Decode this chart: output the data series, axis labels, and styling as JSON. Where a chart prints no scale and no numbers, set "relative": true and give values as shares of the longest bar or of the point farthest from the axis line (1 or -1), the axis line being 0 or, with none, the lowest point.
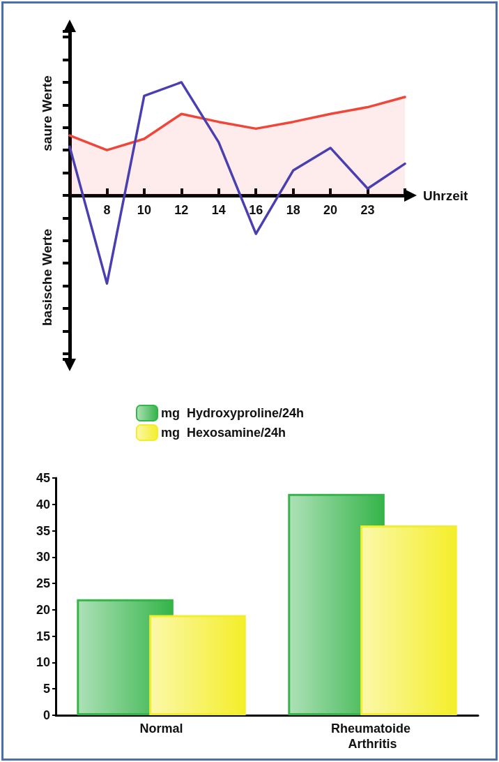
{
  "chart_data": [
    {
      "type": "line",
      "relative": true,
      "ylabel": "saure Werte",
      "xlabel": "Uhrzeit",
      "annotations": [
        "basische Werte"
      ],
      "categories": [
        null,
        "8",
        "10",
        "12",
        "14",
        "16",
        "18",
        "20",
        "23",
        null
      ],
      "series": [
        {
          "type": "area",
          "color": "#f0463a",
          "values": [
            0.53,
            0.4,
            0.5,
            0.72,
            0.65,
            0.59,
            0.65,
            0.72,
            0.78,
            0.87
          ]
        },
        {
          "type": "line",
          "color": "#4a3fb0",
          "values": [
            0.43,
            -0.78,
            0.88,
            1,
            0.47,
            -0.34,
            0.22,
            0.42,
            0.06,
            0.28
          ]
        }
      ],
      "grid": false,
      "legend": false,
      "marker": "none",
      "line_style": "solid"
    },
    {
      "type": "bar",
      "categories": [
        "Normal",
        "Rheumatoide Arthritis"
      ],
      "series": [
        {
          "name": "mg  Hydroxyproline/24h",
          "color": "#35b44a",
          "values": [
            22,
            42
          ]
        },
        {
          "name": "mg  Hexosamine/24h",
          "color": "#f4ee2a",
          "values": [
            19,
            36
          ]
        }
      ],
      "ylim": [
        0,
        45
      ],
      "yticks": [
        0,
        5,
        10,
        15,
        20,
        25,
        30,
        35,
        40,
        45
      ],
      "grid": false,
      "legend": "top left"
    }
  ]
}
